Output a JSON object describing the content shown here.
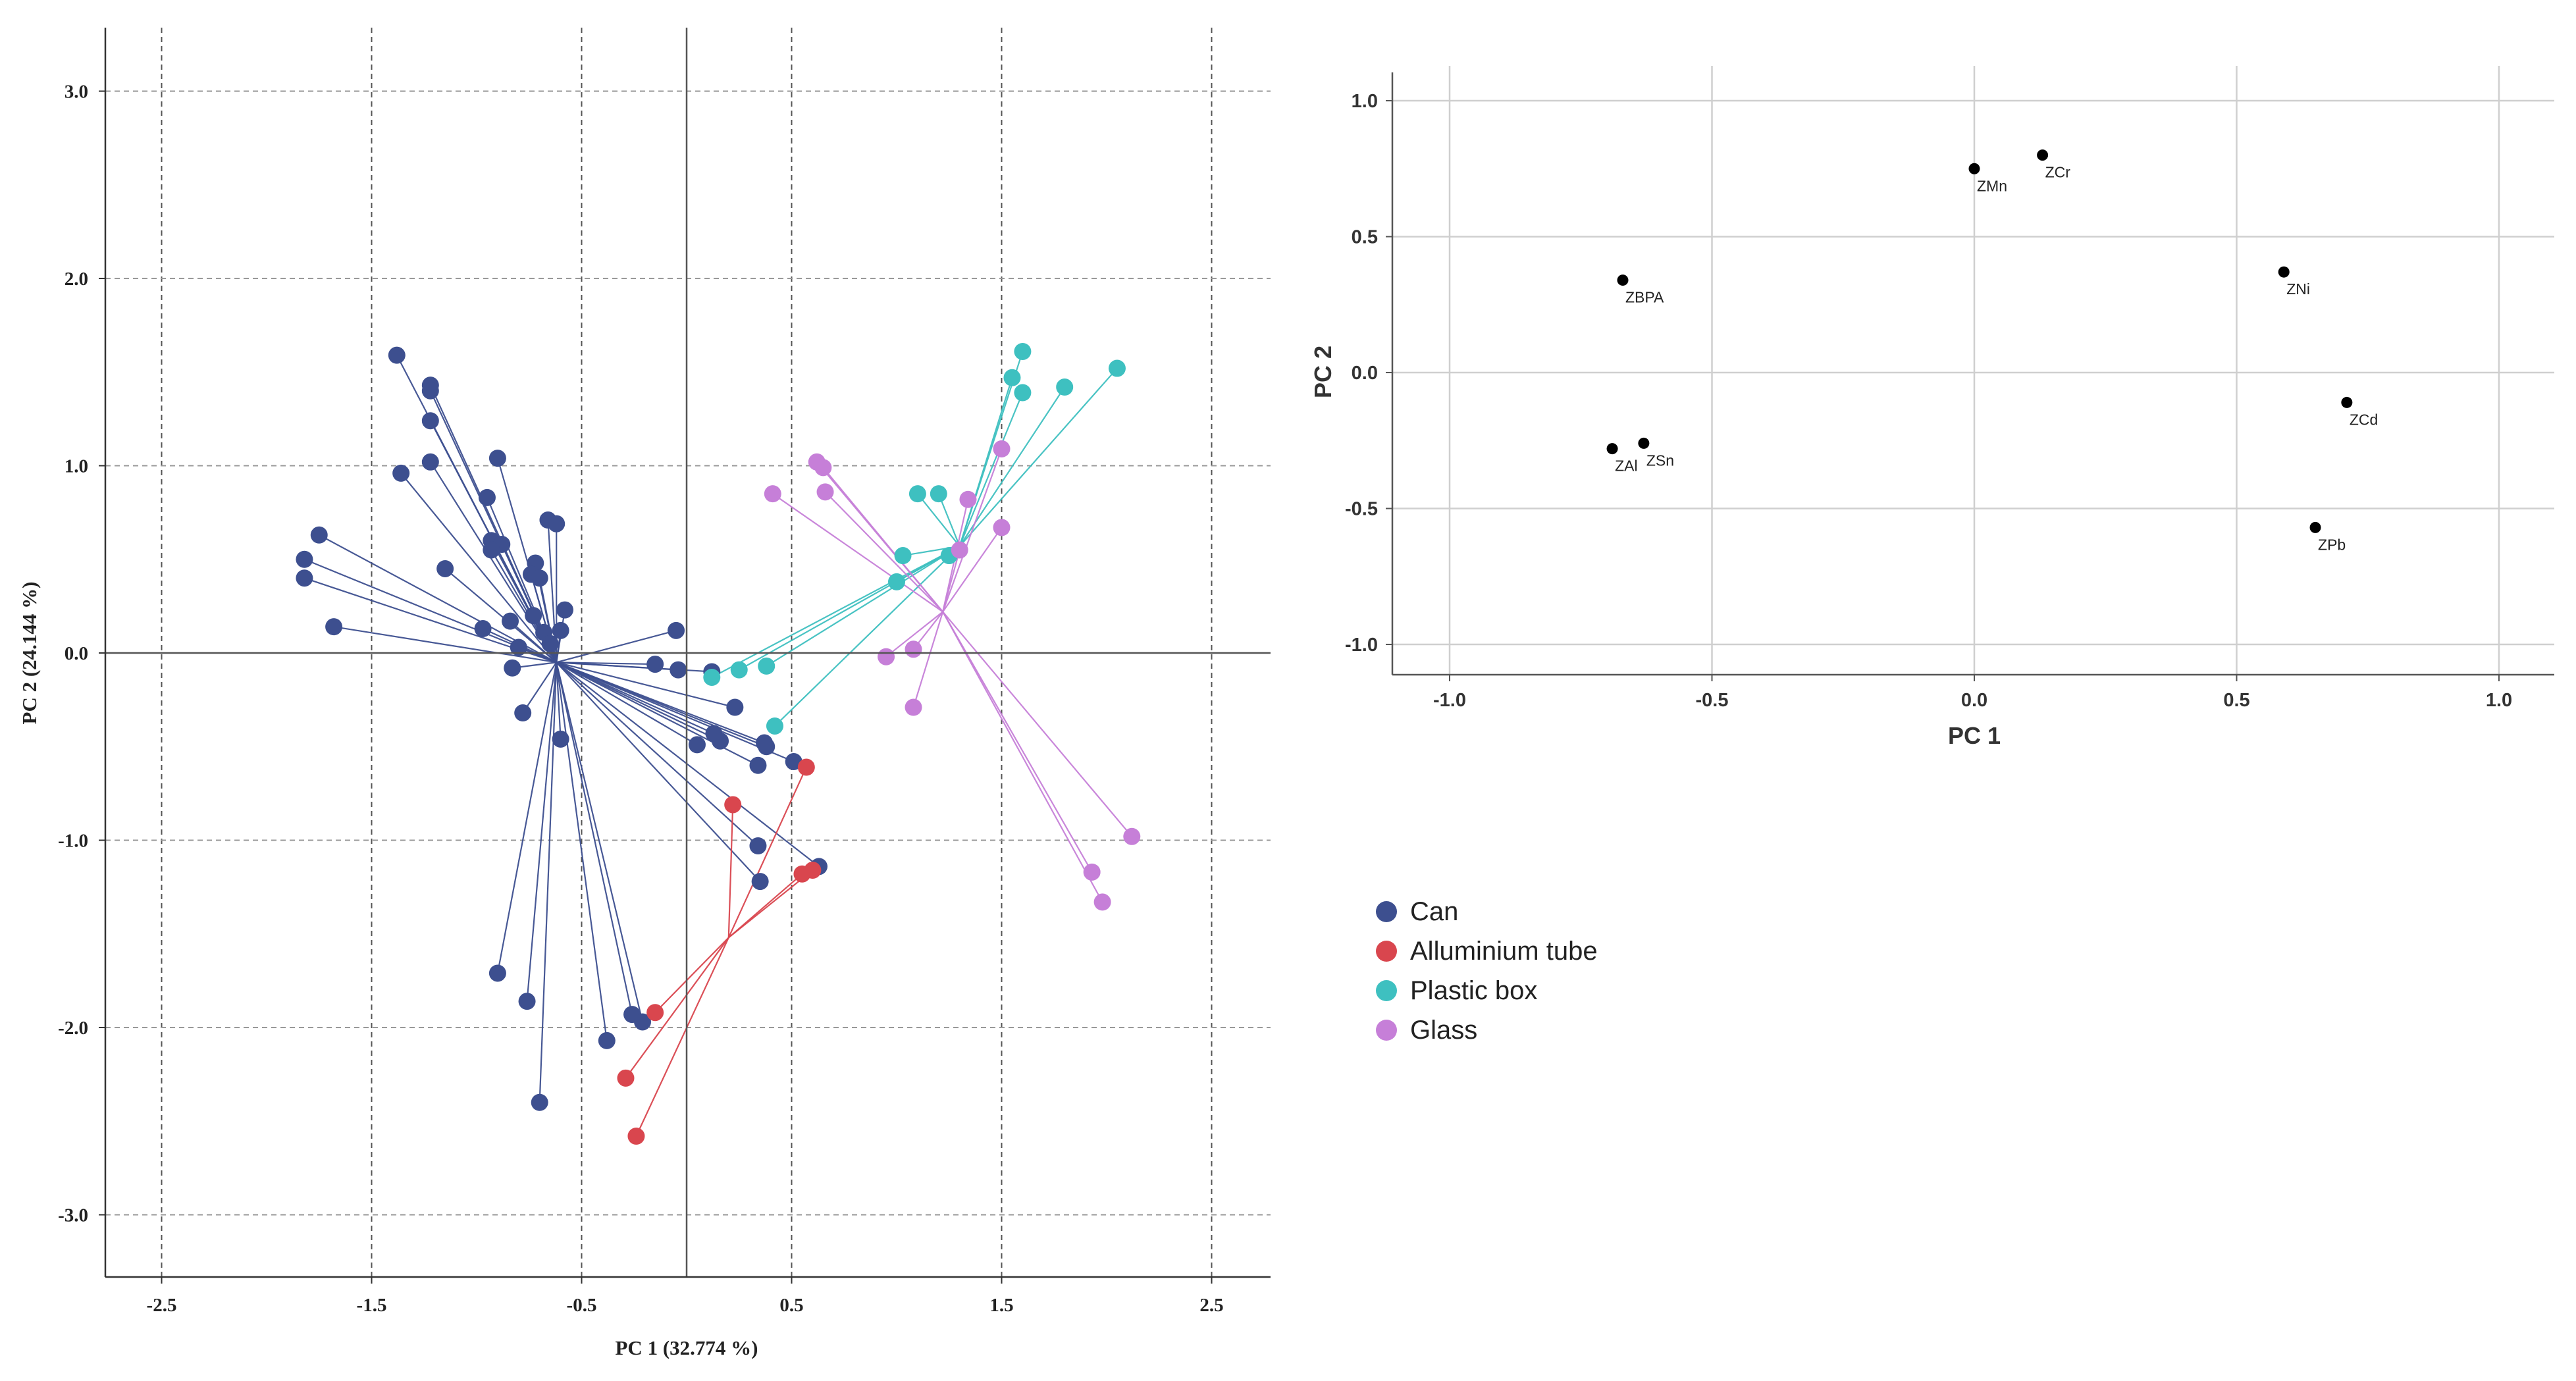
{
  "chart_data": [
    {
      "type": "scatter",
      "subtype": "score-plot-with-centroid-rays",
      "xlabel": "PC 1 (32.774 %)",
      "ylabel": "PC 2 (24.144 %)",
      "xlim": [
        -2.7,
        2.7
      ],
      "ylim": [
        -3.35,
        3.1
      ],
      "xticks": [
        -2.5,
        -1.5,
        -0.5,
        0.5,
        1.5,
        2.5
      ],
      "yticks": [
        3.0,
        2.0,
        1.0,
        0.0,
        -1.0,
        -2.0,
        -3.0
      ],
      "xtick_labels": [
        "-2.5",
        "-1.5",
        "-0.5",
        "0.5",
        "1.5",
        "2.5"
      ],
      "ytick_labels": [
        "3.0",
        "2.0",
        "1.0",
        "0.0",
        "-1.0",
        "-2.0",
        "-3.0"
      ],
      "grid": "dashed",
      "series": [
        {
          "name": "Can",
          "color": "#3d4f8f",
          "centroid": [
            -0.62,
            -0.05
          ],
          "points": [
            [
              -1.38,
              1.59
            ],
            [
              -1.22,
              1.43
            ],
            [
              -1.22,
              1.4
            ],
            [
              -1.22,
              1.24
            ],
            [
              -1.36,
              0.96
            ],
            [
              -1.22,
              1.02
            ],
            [
              -0.9,
              1.04
            ],
            [
              -0.95,
              0.83
            ],
            [
              -0.93,
              0.6
            ],
            [
              -0.88,
              0.58
            ],
            [
              -0.93,
              0.55
            ],
            [
              -0.66,
              0.71
            ],
            [
              -0.62,
              0.69
            ],
            [
              -0.72,
              0.48
            ],
            [
              -0.74,
              0.42
            ],
            [
              -0.7,
              0.4
            ],
            [
              -1.15,
              0.45
            ],
            [
              -1.75,
              0.63
            ],
            [
              -1.82,
              0.5
            ],
            [
              -1.82,
              0.4
            ],
            [
              -1.68,
              0.14
            ],
            [
              -0.97,
              0.13
            ],
            [
              -0.73,
              0.2
            ],
            [
              -0.68,
              0.11
            ],
            [
              -0.6,
              0.12
            ],
            [
              -0.58,
              0.23
            ],
            [
              -0.84,
              0.17
            ],
            [
              -0.8,
              0.03
            ],
            [
              -0.83,
              -0.08
            ],
            [
              -0.65,
              0.05
            ],
            [
              -0.78,
              -0.32
            ],
            [
              -0.6,
              -0.46
            ],
            [
              -0.05,
              0.12
            ],
            [
              -0.15,
              -0.06
            ],
            [
              -0.04,
              -0.09
            ],
            [
              0.12,
              -0.1
            ],
            [
              0.23,
              -0.29
            ],
            [
              0.05,
              -0.49
            ],
            [
              0.13,
              -0.43
            ],
            [
              0.16,
              -0.47
            ],
            [
              0.37,
              -0.48
            ],
            [
              0.38,
              -0.5
            ],
            [
              0.34,
              -0.6
            ],
            [
              0.51,
              -0.58
            ],
            [
              0.34,
              -1.03
            ],
            [
              0.35,
              -1.22
            ],
            [
              0.63,
              -1.14
            ],
            [
              -0.9,
              -1.71
            ],
            [
              -0.76,
              -1.86
            ],
            [
              -0.7,
              -2.4
            ],
            [
              -0.38,
              -2.07
            ],
            [
              -0.26,
              -1.93
            ],
            [
              -0.21,
              -1.97
            ]
          ]
        },
        {
          "name": "Alluminium tube",
          "color": "#d9464e",
          "centroid": [
            0.2,
            -1.52
          ],
          "points": [
            [
              0.57,
              -0.61
            ],
            [
              0.22,
              -0.81
            ],
            [
              0.55,
              -1.18
            ],
            [
              0.6,
              -1.16
            ],
            [
              -0.15,
              -1.92
            ],
            [
              -0.29,
              -2.27
            ],
            [
              -0.24,
              -2.58
            ]
          ]
        },
        {
          "name": "Plastic box",
          "color": "#3ec0c0",
          "centroid": [
            1.3,
            0.57
          ],
          "points": [
            [
              1.6,
              1.61
            ],
            [
              1.55,
              1.47
            ],
            [
              1.6,
              1.39
            ],
            [
              1.8,
              1.42
            ],
            [
              2.05,
              1.52
            ],
            [
              1.1,
              0.85
            ],
            [
              1.2,
              0.85
            ],
            [
              1.03,
              0.52
            ],
            [
              1.25,
              0.52
            ],
            [
              1.0,
              0.38
            ],
            [
              0.12,
              -0.13
            ],
            [
              0.25,
              -0.09
            ],
            [
              0.38,
              -0.07
            ],
            [
              0.42,
              -0.39
            ]
          ]
        },
        {
          "name": "Glass",
          "color": "#c67fd8",
          "centroid": [
            1.22,
            0.22
          ],
          "points": [
            [
              0.62,
              1.02
            ],
            [
              0.65,
              0.99
            ],
            [
              0.41,
              0.85
            ],
            [
              0.66,
              0.86
            ],
            [
              1.5,
              1.09
            ],
            [
              1.34,
              0.82
            ],
            [
              1.5,
              0.67
            ],
            [
              1.3,
              0.55
            ],
            [
              1.08,
              0.02
            ],
            [
              0.95,
              -0.02
            ],
            [
              1.08,
              -0.29
            ],
            [
              2.12,
              -0.98
            ],
            [
              1.93,
              -1.17
            ],
            [
              1.98,
              -1.33
            ]
          ]
        }
      ]
    },
    {
      "type": "scatter",
      "subtype": "loading-plot",
      "xlabel": "PC 1",
      "ylabel": "PC 2",
      "xlim": [
        -1.1,
        1.1
      ],
      "ylim": [
        -1.1,
        1.1
      ],
      "xticks": [
        -1.0,
        -0.5,
        0.0,
        0.5,
        1.0
      ],
      "yticks": [
        1.0,
        0.5,
        0.0,
        -0.5,
        -1.0
      ],
      "xtick_labels": [
        "-1.0",
        "-0.5",
        "0.0",
        "0.5",
        "1.0"
      ],
      "ytick_labels": [
        "1.0",
        "0.5",
        "0.0",
        "-0.5",
        "-1.0"
      ],
      "grid": "solid",
      "points": [
        {
          "label": "ZMn",
          "x": 0.0,
          "y": 0.75
        },
        {
          "label": "ZCr",
          "x": 0.13,
          "y": 0.8
        },
        {
          "label": "ZBPA",
          "x": -0.67,
          "y": 0.34
        },
        {
          "label": "ZNi",
          "x": 0.59,
          "y": 0.37
        },
        {
          "label": "ZCd",
          "x": 0.71,
          "y": -0.11
        },
        {
          "label": "ZAl",
          "x": -0.69,
          "y": -0.28
        },
        {
          "label": "ZSn",
          "x": -0.63,
          "y": -0.26
        },
        {
          "label": "ZPb",
          "x": 0.65,
          "y": -0.57
        }
      ]
    }
  ],
  "legend": {
    "items": [
      {
        "label": "Can",
        "color": "#3d4f8f"
      },
      {
        "label": "Alluminium tube",
        "color": "#d9464e"
      },
      {
        "label": "Plastic box",
        "color": "#3ec0c0"
      },
      {
        "label": "Glass",
        "color": "#c67fd8"
      }
    ]
  }
}
